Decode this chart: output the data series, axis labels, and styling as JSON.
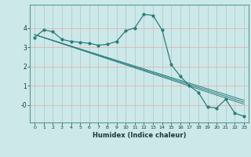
{
  "xlabel": "Humidex (Indice chaleur)",
  "x_values": [
    0,
    1,
    2,
    3,
    4,
    5,
    6,
    7,
    8,
    9,
    10,
    11,
    12,
    13,
    14,
    15,
    16,
    17,
    18,
    19,
    20,
    21,
    22,
    23
  ],
  "main_curve": [
    3.5,
    3.9,
    3.8,
    3.4,
    3.3,
    3.25,
    3.2,
    3.1,
    3.15,
    3.3,
    3.85,
    4.0,
    4.7,
    4.65,
    3.9,
    2.1,
    1.5,
    1.0,
    0.65,
    -0.1,
    -0.15,
    0.3,
    -0.42,
    -0.58
  ],
  "line1_x": [
    0,
    23
  ],
  "line1_y": [
    3.65,
    0.05
  ],
  "line2_x": [
    0,
    23
  ],
  "line2_y": [
    3.65,
    0.15
  ],
  "line3_x": [
    0,
    23
  ],
  "line3_y": [
    3.65,
    0.25
  ],
  "bg_color": "#cde8e8",
  "line_color": "#2a7d7d",
  "hgrid_color": "#e8b0b0",
  "vgrid_color": "#a8d0d0",
  "ylim": [
    -0.9,
    5.2
  ],
  "xlim": [
    -0.5,
    23.5
  ],
  "yticks": [
    0,
    1,
    2,
    3,
    4
  ],
  "ytick_labels": [
    "-0",
    "1",
    "2",
    "3",
    "4"
  ],
  "xticks": [
    0,
    1,
    2,
    3,
    4,
    5,
    6,
    7,
    8,
    9,
    10,
    11,
    12,
    13,
    14,
    15,
    16,
    17,
    18,
    19,
    20,
    21,
    22,
    23
  ]
}
